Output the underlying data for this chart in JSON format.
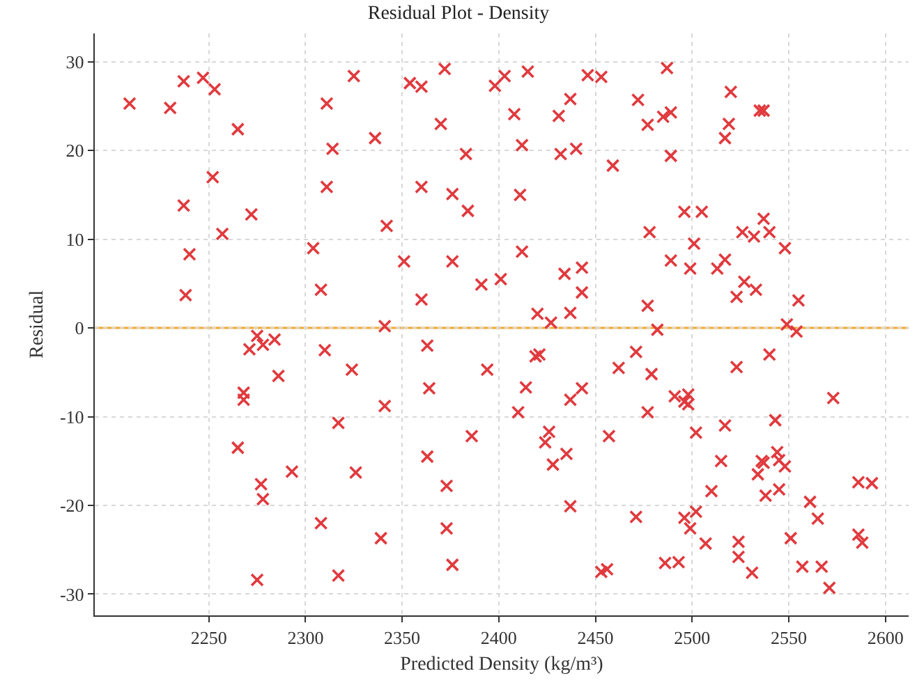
{
  "chart_data": {
    "type": "scatter",
    "title": "Residual Plot - Density",
    "xlabel": "Predicted Density (kg/m³)",
    "ylabel": "Residual",
    "xlim": [
      2191,
      2612
    ],
    "ylim": [
      -32.4,
      33.2
    ],
    "xticks": [
      2250,
      2300,
      2350,
      2400,
      2450,
      2500,
      2550,
      2600
    ],
    "yticks": [
      -30,
      -20,
      -10,
      0,
      10,
      20,
      30
    ],
    "grid": true,
    "marker": "cross",
    "ref_lines": [
      {
        "axis": "y",
        "value": 0,
        "color": "#f0a830",
        "line_style": "solid"
      }
    ],
    "series": [
      {
        "color": "#e03a3e",
        "x": [
          2325,
          2354,
          2360,
          2372,
          2336,
          2370,
          2383,
          2360,
          2376,
          2384,
          2342,
          2351,
          2376,
          2360,
          2341,
          2391,
          2401,
          2398,
          2403,
          2415,
          2408,
          2412,
          2411,
          2412,
          2431,
          2437,
          2432,
          2440,
          2446,
          2453,
          2459,
          2434,
          2443,
          2443,
          2420,
          2427,
          2437,
          2209,
          2230,
          2237,
          2247,
          2253,
          2265,
          2252,
          2237,
          2272,
          2257,
          2240,
          2238,
          2311,
          2314,
          2311,
          2304,
          2308,
          2487,
          2472,
          2477,
          2485,
          2489,
          2489,
          2520,
          2519,
          2517,
          2535,
          2537,
          2496,
          2505,
          2478,
          2501,
          2489,
          2499,
          2513,
          2517,
          2526,
          2532,
          2537,
          2540,
          2548,
          2527,
          2533,
          2523,
          2555,
          2477,
          2482,
          2549,
          2554,
          2275,
          2271,
          2278,
          2284,
          2310,
          2324,
          2286,
          2268,
          2268,
          2317,
          2265,
          2293,
          2326,
          2277,
          2278,
          2308,
          2275,
          2317,
          2363,
          2394,
          2364,
          2341,
          2419,
          2421,
          2414,
          2443,
          2437,
          2410,
          2426,
          2424,
          2386,
          2363,
          2435,
          2428,
          2373,
          2437,
          2373,
          2339,
          2376,
          2453,
          2456,
          2462,
          2457,
          2471,
          2479,
          2540,
          2523,
          2491,
          2498,
          2496,
          2498,
          2477,
          2502,
          2517,
          2573,
          2543,
          2515,
          2536,
          2537,
          2544,
          2545,
          2548,
          2534,
          2510,
          2538,
          2545,
          2586,
          2593,
          2561,
          2565,
          2502,
          2471,
          2496,
          2499,
          2507,
          2524,
          2524,
          2551,
          2586,
          2588,
          2486,
          2493,
          2531,
          2557,
          2567,
          2571
        ],
        "values": [
          28.4,
          27.6,
          27.2,
          29.2,
          21.4,
          23.0,
          19.6,
          15.9,
          15.1,
          13.2,
          11.5,
          7.5,
          7.5,
          3.2,
          0.2,
          4.9,
          5.5,
          27.3,
          28.4,
          28.9,
          24.1,
          20.6,
          15.0,
          8.6,
          23.9,
          25.8,
          19.6,
          20.2,
          28.5,
          28.3,
          18.3,
          6.1,
          6.8,
          4.0,
          1.6,
          0.6,
          1.7,
          25.3,
          24.8,
          27.8,
          28.2,
          26.9,
          22.4,
          17.0,
          13.8,
          12.8,
          10.6,
          8.3,
          3.7,
          25.3,
          20.2,
          15.9,
          9.0,
          4.3,
          29.3,
          25.7,
          22.9,
          23.8,
          24.3,
          19.4,
          26.6,
          23.0,
          21.4,
          24.5,
          24.5,
          13.1,
          13.1,
          10.8,
          9.5,
          7.6,
          6.7,
          6.7,
          7.7,
          10.8,
          10.3,
          12.3,
          10.8,
          9.0,
          5.2,
          4.3,
          3.5,
          3.1,
          2.5,
          -0.2,
          0.4,
          -0.4,
          -0.9,
          -2.4,
          -1.9,
          -1.3,
          -2.5,
          -4.7,
          -5.4,
          -7.3,
          -8.1,
          -10.7,
          -13.5,
          -16.2,
          -16.3,
          -17.6,
          -19.3,
          -22.0,
          -28.4,
          -27.9,
          -2.0,
          -4.7,
          -6.8,
          -8.8,
          -3.2,
          -3.0,
          -6.7,
          -6.8,
          -8.1,
          -9.5,
          -11.7,
          -12.9,
          -12.2,
          -14.5,
          -14.2,
          -15.4,
          -17.8,
          -20.1,
          -22.6,
          -23.7,
          -26.7,
          -27.5,
          -27.2,
          -4.5,
          -12.2,
          -2.7,
          -5.2,
          -3.0,
          -4.4,
          -7.7,
          -7.5,
          -8.3,
          -8.6,
          -9.5,
          -11.8,
          -11.0,
          -7.9,
          -10.4,
          -15.0,
          -15.0,
          -15.2,
          -14.0,
          -14.9,
          -15.6,
          -16.5,
          -18.4,
          -18.9,
          -18.2,
          -17.4,
          -17.5,
          -19.6,
          -21.5,
          -20.7,
          -21.3,
          -21.4,
          -22.6,
          -24.3,
          -24.1,
          -25.8,
          -23.7,
          -23.3,
          -24.2,
          -26.5,
          -26.4,
          -27.6,
          -26.9,
          -26.9,
          -29.3
        ]
      }
    ]
  }
}
